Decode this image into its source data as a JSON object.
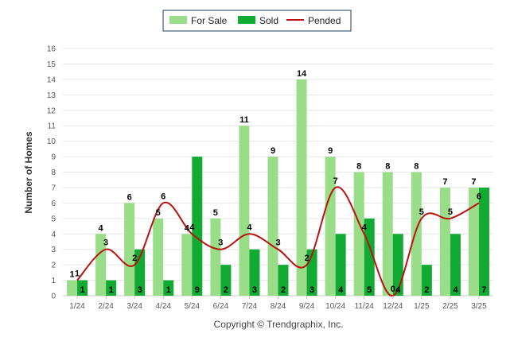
{
  "chart_data": {
    "type": "bar",
    "categories": [
      "1/24",
      "2/24",
      "3/24",
      "4/24",
      "5/24",
      "6/24",
      "7/24",
      "8/24",
      "9/24",
      "10/24",
      "11/24",
      "12/24",
      "1/25",
      "2/25",
      "3/25"
    ],
    "series": [
      {
        "name": "For Sale",
        "type": "bar",
        "color": "#99dd88",
        "values": [
          1,
          4,
          6,
          5,
          4,
          5,
          11,
          9,
          14,
          9,
          8,
          8,
          8,
          7,
          7
        ]
      },
      {
        "name": "Sold",
        "type": "bar",
        "color": "#11aa33",
        "values": [
          1,
          1,
          3,
          1,
          9,
          2,
          3,
          2,
          3,
          4,
          5,
          4,
          2,
          4,
          7
        ]
      },
      {
        "name": "Pended",
        "type": "line",
        "color": "#bb1111",
        "values": [
          1,
          3,
          2,
          6,
          4,
          3,
          4,
          3,
          2,
          7,
          4,
          0,
          5,
          5,
          6
        ]
      }
    ],
    "ylabel": "Number of Homes",
    "xlabel": "",
    "ylim": [
      0,
      16
    ],
    "yticks": [
      0,
      1,
      2,
      3,
      4,
      5,
      6,
      7,
      8,
      9,
      10,
      11,
      12,
      13,
      14,
      15,
      16
    ],
    "grid": true,
    "legend_position": "top-center"
  },
  "footer": {
    "copyright": "Copyright © Trendgraphix, Inc."
  }
}
